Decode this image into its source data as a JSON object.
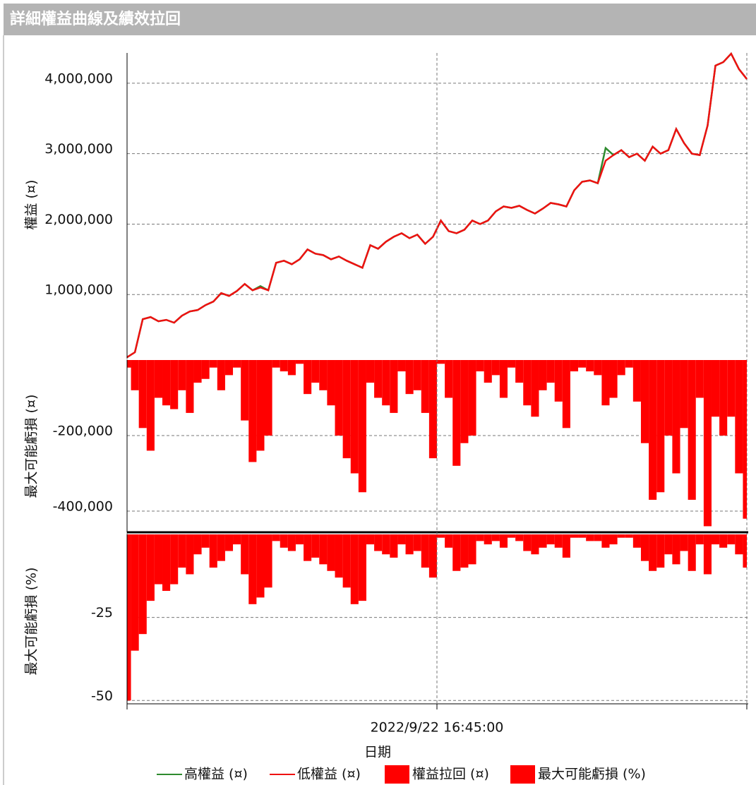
{
  "chart_data": [
    {
      "type": "line",
      "title": "詳細權益曲線及績效拉回",
      "ylabel": "權益 (¤)",
      "grid": true,
      "ylim": [
        90000,
        4430000
      ],
      "yticks": [
        {
          "value": 1000000,
          "label": "1,000,000"
        },
        {
          "value": 2000000,
          "label": "2,000,000"
        },
        {
          "value": 3000000,
          "label": "3,000,000"
        },
        {
          "value": 4000000,
          "label": "4,000,000"
        }
      ],
      "series": [
        {
          "name": "高權益 (¤)",
          "color": "#2e8b2e",
          "values": [
            110000,
            180000,
            650000,
            680000,
            620000,
            640000,
            600000,
            700000,
            760000,
            780000,
            850000,
            900000,
            1020000,
            980000,
            1050000,
            1150000,
            1060000,
            1120000,
            1060000,
            1450000,
            1480000,
            1430000,
            1500000,
            1640000,
            1580000,
            1560000,
            1500000,
            1540000,
            1480000,
            1430000,
            1380000,
            1700000,
            1650000,
            1750000,
            1820000,
            1870000,
            1800000,
            1850000,
            1720000,
            1820000,
            2050000,
            1900000,
            1870000,
            1920000,
            2050000,
            2000000,
            2050000,
            2180000,
            2250000,
            2230000,
            2260000,
            2200000,
            2150000,
            2220000,
            2300000,
            2280000,
            2250000,
            2480000,
            2600000,
            2620000,
            2580000,
            3080000,
            2980000,
            3050000,
            2950000,
            3000000,
            2900000,
            3100000,
            3000000,
            3050000,
            3350000,
            3150000,
            3000000,
            2980000,
            3400000,
            4250000,
            4300000,
            4420000,
            4200000,
            4060000
          ]
        },
        {
          "name": "低權益 (¤)",
          "color": "#ee1111",
          "values": [
            110000,
            180000,
            650000,
            680000,
            620000,
            640000,
            600000,
            700000,
            760000,
            780000,
            850000,
            900000,
            1020000,
            980000,
            1050000,
            1150000,
            1060000,
            1100000,
            1060000,
            1450000,
            1480000,
            1430000,
            1500000,
            1640000,
            1580000,
            1560000,
            1500000,
            1540000,
            1480000,
            1430000,
            1380000,
            1700000,
            1650000,
            1750000,
            1820000,
            1870000,
            1800000,
            1850000,
            1720000,
            1820000,
            2050000,
            1900000,
            1870000,
            1920000,
            2050000,
            2000000,
            2050000,
            2180000,
            2250000,
            2230000,
            2260000,
            2200000,
            2150000,
            2220000,
            2300000,
            2280000,
            2250000,
            2480000,
            2600000,
            2620000,
            2580000,
            2900000,
            2980000,
            3050000,
            2950000,
            3000000,
            2900000,
            3100000,
            3000000,
            3050000,
            3350000,
            3150000,
            3000000,
            2980000,
            3400000,
            4250000,
            4300000,
            4420000,
            4200000,
            4060000
          ]
        }
      ]
    },
    {
      "type": "bar",
      "ylabel": "最大可能虧損 (¤)",
      "grid": true,
      "ylim": [
        -456000,
        0
      ],
      "yticks": [
        {
          "value": -200000,
          "label": "-200,000"
        },
        {
          "value": -400000,
          "label": "-400,000"
        }
      ],
      "series": [
        {
          "name": "權益拉回 (¤)",
          "color": "#ff0000",
          "values": [
            -20000,
            -80000,
            -180000,
            -240000,
            -100000,
            -120000,
            -130000,
            -80000,
            -140000,
            -60000,
            -50000,
            -20000,
            -80000,
            -40000,
            -20000,
            -160000,
            -270000,
            -240000,
            -200000,
            -20000,
            -30000,
            -40000,
            -10000,
            -90000,
            -60000,
            -80000,
            -120000,
            -200000,
            -260000,
            -300000,
            -350000,
            -60000,
            -100000,
            -120000,
            -140000,
            -30000,
            -90000,
            -80000,
            -140000,
            -260000,
            -10000,
            -100000,
            -280000,
            -220000,
            -200000,
            -30000,
            -60000,
            -40000,
            -100000,
            -20000,
            -60000,
            -120000,
            -150000,
            -80000,
            -60000,
            -110000,
            -180000,
            -30000,
            -20000,
            -30000,
            -40000,
            -120000,
            -100000,
            -40000,
            -20000,
            -110000,
            -220000,
            -370000,
            -350000,
            -200000,
            -300000,
            -180000,
            -370000,
            -100000,
            -440000,
            -150000,
            -200000,
            -150000,
            -300000,
            -420000
          ]
        }
      ]
    },
    {
      "type": "bar",
      "ylabel": "最大可能虧損 (%)",
      "xlabel": "日期",
      "grid": true,
      "ylim": [
        -51,
        0
      ],
      "yticks": [
        -25,
        -50
      ],
      "xlim": [
        0,
        79
      ],
      "xticks": [
        {
          "value": 39.5,
          "label": "2022/9/22 16:45:00"
        }
      ],
      "series": [
        {
          "name": "最大可能虧損 (%)",
          "color": "#ff0000",
          "values": [
            -50,
            -35,
            -30,
            -20,
            -15,
            -17,
            -15,
            -10,
            -12,
            -6,
            -4,
            -10,
            -8,
            -5,
            -3,
            -12,
            -21,
            -19,
            -16,
            -2,
            -4,
            -5,
            -3,
            -8,
            -7,
            -9,
            -11,
            -13,
            -16,
            -21,
            -20,
            -3,
            -5,
            -6,
            -7,
            -3,
            -6,
            -5,
            -10,
            -13,
            -1,
            -4,
            -11,
            -10,
            -9,
            -2,
            -3,
            -2,
            -4,
            -1,
            -2,
            -5,
            -6,
            -4,
            -3,
            -4,
            -7,
            -1,
            -1,
            -2,
            -2,
            -4,
            -3,
            -1,
            -1,
            -4,
            -8,
            -11,
            -10,
            -6,
            -9,
            -5,
            -11,
            -3,
            -12,
            -3,
            -4,
            -3,
            -6,
            -10
          ]
        }
      ]
    }
  ]
}
